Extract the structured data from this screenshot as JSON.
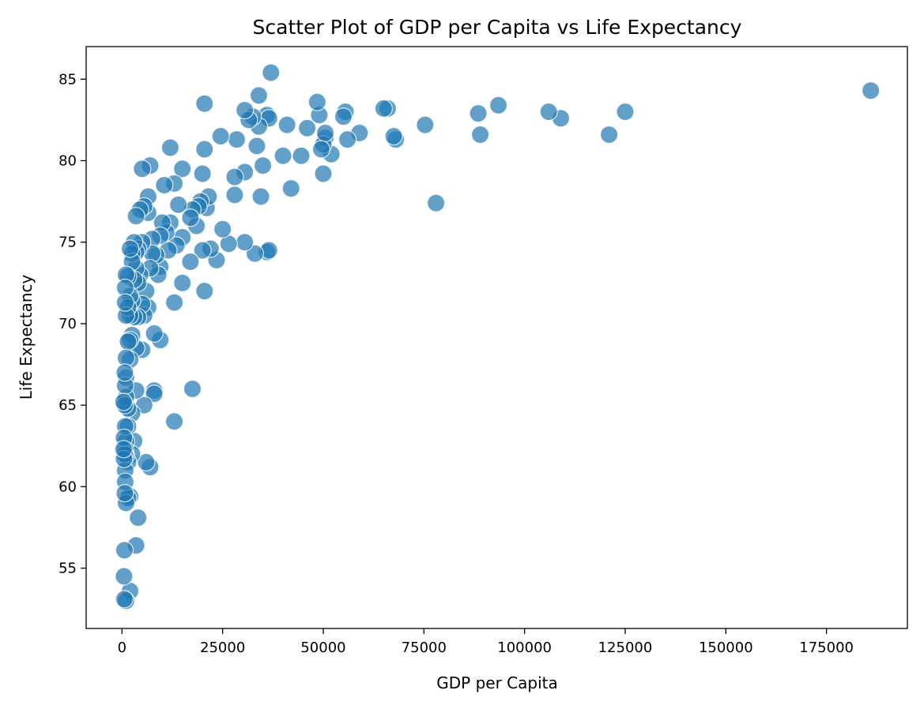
{
  "chart_data": {
    "type": "scatter",
    "title": "Scatter Plot of GDP per Capita vs Life Expectancy",
    "xlabel": "GDP per Capita",
    "ylabel": "Life Expectancy",
    "xlim": [
      -8900,
      195100
    ],
    "ylim": [
      51.3,
      87.0
    ],
    "xticks": [
      0,
      25000,
      50000,
      75000,
      100000,
      125000,
      150000,
      175000
    ],
    "xtick_labels": [
      "0",
      "25000",
      "50000",
      "75000",
      "100000",
      "125000",
      "150000",
      "175000"
    ],
    "yticks": [
      55,
      60,
      65,
      70,
      75,
      80,
      85
    ],
    "ytick_labels": [
      "55",
      "60",
      "65",
      "70",
      "75",
      "80",
      "85"
    ],
    "grid": false,
    "legend": "none",
    "marker_color": "#1f77b4",
    "marker_edge_color": "#ffffff",
    "marker_alpha": 0.7,
    "series": [
      {
        "points": [
          [
            186000,
            84.3
          ],
          [
            125000,
            83.0
          ],
          [
            121000,
            81.6
          ],
          [
            109000,
            82.6
          ],
          [
            106000,
            83.0
          ],
          [
            93500,
            83.4
          ],
          [
            89000,
            81.6
          ],
          [
            88500,
            82.9
          ],
          [
            78000,
            77.4
          ],
          [
            75300,
            82.2
          ],
          [
            68000,
            81.3
          ],
          [
            67500,
            81.5
          ],
          [
            66000,
            83.2
          ],
          [
            65000,
            83.2
          ],
          [
            59000,
            81.7
          ],
          [
            56000,
            81.3
          ],
          [
            55500,
            83.0
          ],
          [
            55000,
            82.7
          ],
          [
            52000,
            80.4
          ],
          [
            50500,
            81.4
          ],
          [
            50000,
            81.0
          ],
          [
            50500,
            81.7
          ],
          [
            49500,
            80.7
          ],
          [
            50000,
            79.2
          ],
          [
            49000,
            82.8
          ],
          [
            48500,
            83.6
          ],
          [
            46000,
            82.0
          ],
          [
            44500,
            80.3
          ],
          [
            42000,
            78.3
          ],
          [
            41000,
            82.2
          ],
          [
            40000,
            80.3
          ],
          [
            37000,
            85.4
          ],
          [
            36000,
            82.8
          ],
          [
            36500,
            82.6
          ],
          [
            35000,
            79.7
          ],
          [
            36000,
            74.4
          ],
          [
            36500,
            74.5
          ],
          [
            34500,
            77.8
          ],
          [
            34000,
            84.0
          ],
          [
            34000,
            82.1
          ],
          [
            33500,
            80.9
          ],
          [
            33000,
            74.3
          ],
          [
            32500,
            82.7
          ],
          [
            31500,
            82.5
          ],
          [
            30500,
            83.1
          ],
          [
            30500,
            79.3
          ],
          [
            30500,
            75.0
          ],
          [
            28500,
            81.3
          ],
          [
            28000,
            79.0
          ],
          [
            28000,
            77.9
          ],
          [
            26500,
            74.9
          ],
          [
            25000,
            75.8
          ],
          [
            24500,
            81.5
          ],
          [
            23500,
            73.9
          ],
          [
            22000,
            74.6
          ],
          [
            21000,
            77.1
          ],
          [
            21500,
            77.8
          ],
          [
            20500,
            80.7
          ],
          [
            20500,
            83.5
          ],
          [
            20000,
            79.2
          ],
          [
            20000,
            74.5
          ],
          [
            20500,
            72.0
          ],
          [
            19500,
            77.5
          ],
          [
            19000,
            77.2
          ],
          [
            18500,
            76.0
          ],
          [
            17500,
            77.0
          ],
          [
            17000,
            76.5
          ],
          [
            17000,
            73.8
          ],
          [
            17500,
            66.0
          ],
          [
            15000,
            79.5
          ],
          [
            15000,
            75.3
          ],
          [
            15000,
            72.5
          ],
          [
            14000,
            77.3
          ],
          [
            13500,
            74.8
          ],
          [
            13000,
            78.6
          ],
          [
            13000,
            71.3
          ],
          [
            13000,
            64.0
          ],
          [
            12000,
            80.8
          ],
          [
            12000,
            76.2
          ],
          [
            11500,
            74.5
          ],
          [
            11000,
            75.6
          ],
          [
            10500,
            78.5
          ],
          [
            10000,
            76.2
          ],
          [
            9500,
            75.4
          ],
          [
            9500,
            73.5
          ],
          [
            9500,
            69.0
          ],
          [
            9000,
            73.0
          ],
          [
            8500,
            74.2
          ],
          [
            8000,
            69.4
          ],
          [
            8000,
            65.9
          ],
          [
            8000,
            65.7
          ],
          [
            7500,
            75.2
          ],
          [
            7500,
            74.3
          ],
          [
            7000,
            79.7
          ],
          [
            7000,
            73.4
          ],
          [
            7000,
            61.2
          ],
          [
            6500,
            77.8
          ],
          [
            6500,
            76.8
          ],
          [
            6500,
            71.0
          ],
          [
            6000,
            72.0
          ],
          [
            6000,
            61.5
          ],
          [
            5500,
            77.2
          ],
          [
            5500,
            70.5
          ],
          [
            5500,
            65.0
          ],
          [
            5000,
            79.5
          ],
          [
            5000,
            75.0
          ],
          [
            5000,
            71.2
          ],
          [
            5000,
            68.4
          ],
          [
            4500,
            77.0
          ],
          [
            4500,
            73.0
          ],
          [
            4000,
            74.6
          ],
          [
            4000,
            72.5
          ],
          [
            4000,
            70.4
          ],
          [
            4000,
            58.1
          ],
          [
            3500,
            76.6
          ],
          [
            3500,
            74.4
          ],
          [
            3500,
            73.4
          ],
          [
            3500,
            68.5
          ],
          [
            3500,
            65.9
          ],
          [
            3500,
            56.4
          ],
          [
            3000,
            75.0
          ],
          [
            3000,
            72.7
          ],
          [
            3000,
            70.4
          ],
          [
            3000,
            62.8
          ],
          [
            2500,
            74.3
          ],
          [
            2500,
            73.8
          ],
          [
            2500,
            71.4
          ],
          [
            2500,
            69.3
          ],
          [
            2500,
            64.5
          ],
          [
            2500,
            62.0
          ],
          [
            2000,
            74.6
          ],
          [
            2000,
            71.7
          ],
          [
            2000,
            70.5
          ],
          [
            2000,
            69.0
          ],
          [
            2000,
            67.8
          ],
          [
            2000,
            59.4
          ],
          [
            2000,
            53.6
          ],
          [
            1500,
            72.9
          ],
          [
            1500,
            71.0
          ],
          [
            1500,
            68.9
          ],
          [
            1500,
            64.8
          ],
          [
            1500,
            63.7
          ],
          [
            1500,
            61.5
          ],
          [
            1500,
            59.3
          ],
          [
            1000,
            73.0
          ],
          [
            1000,
            70.5
          ],
          [
            1000,
            67.9
          ],
          [
            1000,
            66.7
          ],
          [
            1000,
            65.5
          ],
          [
            1000,
            62.8
          ],
          [
            1000,
            61.9
          ],
          [
            1000,
            59.0
          ],
          [
            1000,
            53.0
          ],
          [
            800,
            72.2
          ],
          [
            800,
            71.3
          ],
          [
            800,
            66.2
          ],
          [
            800,
            63.7
          ],
          [
            800,
            62.3
          ],
          [
            800,
            61.0
          ],
          [
            800,
            60.3
          ],
          [
            700,
            67.0
          ],
          [
            700,
            65.0
          ],
          [
            700,
            62.0
          ],
          [
            700,
            59.6
          ],
          [
            600,
            56.1
          ],
          [
            600,
            53.1
          ],
          [
            500,
            63.0
          ],
          [
            500,
            61.7
          ],
          [
            500,
            54.5
          ],
          [
            400,
            65.2
          ],
          [
            400,
            62.3
          ]
        ]
      }
    ]
  }
}
